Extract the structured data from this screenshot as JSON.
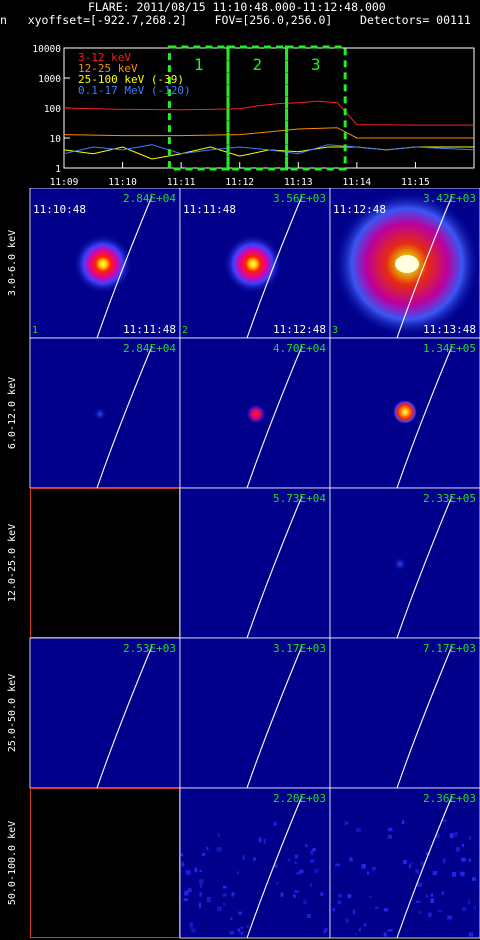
{
  "header": {
    "line1": "FLARE: 2011/08/15 11:10:48.000-11:12:48.000",
    "line2": "n   xyoffset=[-922.7,268.2]    FOV=[256.0,256.0]    Detectors= 00111"
  },
  "chart_data": [
    {
      "type": "line",
      "y_scale": "log",
      "ylim": [
        1,
        10000
      ],
      "y_ticks": [
        "1",
        "10",
        "100",
        "1000",
        "10000"
      ],
      "x_ticks": [
        "11:09",
        "11:10",
        "11:11",
        "11:12",
        "11:13",
        "11:14",
        "11:15"
      ],
      "xlim": [
        "11:09",
        "11:16"
      ],
      "series": [
        {
          "name": "3-12 keV",
          "color": "#ff2020",
          "x": [
            "11:09",
            "11:10",
            "11:11",
            "11:11:30",
            "11:12",
            "11:12:20",
            "11:12:40",
            "11:13",
            "11:13:20",
            "11:13:40",
            "11:14",
            "11:15",
            "11:16"
          ],
          "values": [
            100,
            90,
            88,
            90,
            95,
            120,
            140,
            150,
            170,
            150,
            28,
            27,
            27
          ]
        },
        {
          "name": "12-25 keV",
          "color": "#ff8c00",
          "x": [
            "11:09",
            "11:10",
            "11:11",
            "11:12",
            "11:12:30",
            "11:13",
            "11:13:40",
            "11:14",
            "11:15",
            "11:16"
          ],
          "values": [
            13,
            12,
            12,
            13,
            16,
            20,
            22,
            10,
            10,
            10
          ]
        },
        {
          "name": "25-100 keV (-39)",
          "color": "#ffff00",
          "x": [
            "11:09",
            "11:09:30",
            "11:10",
            "11:10:30",
            "11:11",
            "11:11:30",
            "11:12",
            "11:12:30",
            "11:13",
            "11:13:30",
            "11:14",
            "11:14:30",
            "11:15",
            "11:16"
          ],
          "values": [
            4,
            3,
            5,
            2,
            3,
            5,
            2.5,
            4,
            3.5,
            5,
            5,
            4,
            5,
            5
          ]
        },
        {
          "name": "0.1-17 MeV (-120)",
          "color": "#3a7fff",
          "x": [
            "11:09",
            "11:09:30",
            "11:10",
            "11:10:30",
            "11:11",
            "11:11:30",
            "11:12",
            "11:12:30",
            "11:13",
            "11:13:30",
            "11:14",
            "11:14:30",
            "11:15",
            "11:16"
          ],
          "values": [
            3,
            5,
            4,
            6,
            3,
            4,
            5,
            4,
            3,
            6,
            5,
            4,
            5,
            4
          ]
        }
      ],
      "intervals": [
        {
          "label": "1",
          "start": "11:10:48",
          "end": "11:11:48"
        },
        {
          "label": "2",
          "start": "11:11:48",
          "end": "11:12:48"
        },
        {
          "label": "3",
          "start": "11:12:48",
          "end": "11:13:48"
        }
      ]
    },
    {
      "type": "image-grid",
      "row_labels": [
        "3.0-6.0 keV",
        "6.0-12.0 keV",
        "12.0-25.0 keV",
        "25.0-50.0 keV",
        "50.0-100.0 keV"
      ],
      "start_times": [
        "11:10:48",
        "11:11:48",
        "11:12:48"
      ],
      "end_times": [
        "11:11:48",
        "11:12:48",
        "11:13:48"
      ],
      "interval_numbers": [
        "1",
        "2",
        "3"
      ],
      "cells": [
        [
          {
            "max": "2.84E+04",
            "src": "med"
          },
          {
            "max": "3.56E+03",
            "src": "med"
          },
          {
            "max": "3.42E+03",
            "src": "large"
          }
        ],
        [
          {
            "max": "2.84E+04",
            "src": "tiny"
          },
          {
            "max": "4.70E+04",
            "src": "small-red"
          },
          {
            "max": "1.34E+05",
            "src": "small-yellow"
          }
        ],
        [
          {
            "max": "",
            "src": "empty"
          },
          {
            "max": "5.73E+04",
            "src": "none"
          },
          {
            "max": "2.33E+05",
            "src": "tiny"
          }
        ],
        [
          {
            "max": "2.53E+03",
            "src": "none"
          },
          {
            "max": "3.17E+03",
            "src": "none"
          },
          {
            "max": "7.17E+03",
            "src": "none"
          }
        ],
        [
          {
            "max": "",
            "src": "empty"
          },
          {
            "max": "2.20E+03",
            "src": "noise"
          },
          {
            "max": "2.36E+03",
            "src": "noise"
          }
        ]
      ]
    }
  ],
  "colors": {
    "background": "#000000",
    "panel_bg": "#00008b",
    "max_label": "#22dd22",
    "interval_box": "#22ee22",
    "limb": "#ffffff",
    "empty_border": "#d04020"
  }
}
